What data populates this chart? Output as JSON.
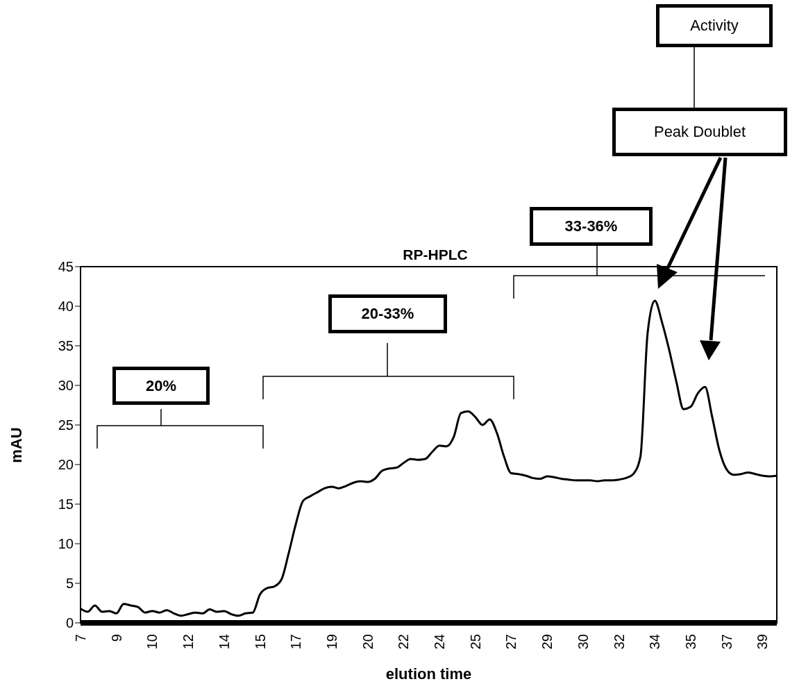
{
  "chart_data": {
    "type": "line",
    "title": "RP-HPLC",
    "xlabel": "elution time",
    "ylabel": "mAU",
    "color": "#000000",
    "categories": [
      "7",
      null,
      null,
      null,
      null,
      "9",
      null,
      null,
      null,
      null,
      "10",
      null,
      null,
      null,
      null,
      "12",
      null,
      null,
      null,
      null,
      "14",
      null,
      null,
      null,
      null,
      "15",
      null,
      null,
      null,
      null,
      "17",
      null,
      null,
      null,
      null,
      "19",
      null,
      null,
      null,
      null,
      "20",
      null,
      null,
      null,
      null,
      "22",
      null,
      null,
      null,
      null,
      "24",
      null,
      null,
      null,
      null,
      "25",
      null,
      null,
      null,
      null,
      "27",
      null,
      null,
      null,
      null,
      "29",
      null,
      null,
      null,
      null,
      "30",
      null,
      null,
      null,
      null,
      "32",
      null,
      null,
      null,
      null,
      "34",
      null,
      null,
      null,
      null,
      "35",
      null,
      null,
      null,
      null,
      "37",
      null,
      null,
      null,
      null,
      "39",
      null,
      null
    ],
    "values": [
      1.8,
      1.4,
      2.2,
      1.4,
      1.5,
      1.2,
      2.4,
      2.2,
      2.0,
      1.3,
      1.5,
      1.3,
      1.6,
      1.2,
      0.9,
      1.1,
      1.3,
      1.2,
      1.7,
      1.4,
      1.5,
      1.1,
      0.9,
      1.2,
      1.3,
      3.6,
      4.4,
      4.6,
      5.5,
      8.8,
      12.5,
      15.4,
      16.0,
      16.5,
      17.0,
      17.2,
      17.0,
      17.3,
      17.7,
      17.9,
      17.8,
      18.2,
      19.2,
      19.5,
      19.6,
      20.2,
      20.7,
      20.6,
      20.7,
      21.6,
      22.4,
      22.3,
      23.5,
      26.5,
      26.7,
      26.0,
      25.0,
      25.7,
      24.0,
      21.0,
      18.9,
      18.8,
      18.6,
      18.3,
      18.2,
      18.5,
      18.4,
      18.2,
      18.1,
      18.0,
      18.0,
      18.0,
      17.9,
      18.0,
      18.0,
      18.1,
      18.3,
      18.8,
      21.0,
      36.6,
      40.7,
      38.0,
      34.5,
      30.5,
      27.0,
      27.3,
      29.0,
      29.8,
      26.0,
      21.8,
      19.4,
      18.7,
      18.8,
      19.0,
      18.8,
      18.6,
      18.5,
      18.6
    ],
    "ylim": [
      0,
      45
    ],
    "yticks": [
      0,
      5,
      10,
      15,
      20,
      25,
      30,
      35,
      40,
      45
    ],
    "annotations": [
      "20%",
      "20-33%",
      "33-36%",
      "Activity",
      "Peak Doublet"
    ]
  }
}
